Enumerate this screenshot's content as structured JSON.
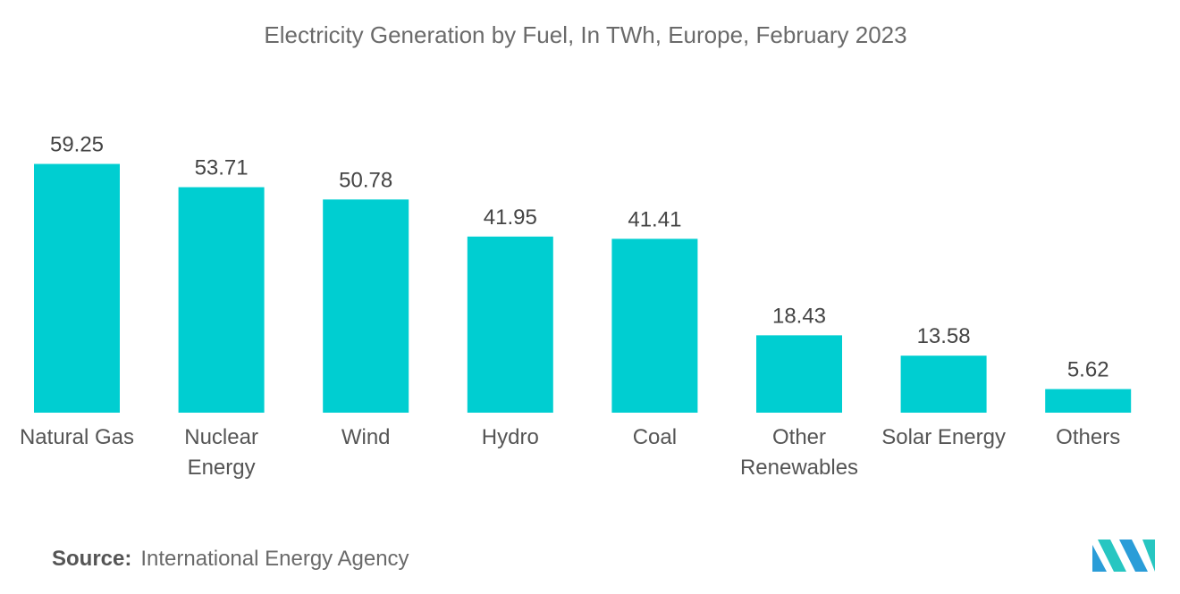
{
  "chart_data": {
    "type": "bar",
    "title": "Electricity Generation by Fuel, In TWh, Europe, February 2023",
    "categories": [
      [
        "Natural Gas"
      ],
      [
        "Nuclear",
        "Energy"
      ],
      [
        "Wind"
      ],
      [
        "Hydro"
      ],
      [
        "Coal"
      ],
      [
        "Other",
        "Renewables"
      ],
      [
        "Solar Energy"
      ],
      [
        "Others"
      ]
    ],
    "values": [
      59.25,
      53.71,
      50.78,
      41.95,
      41.41,
      18.43,
      13.58,
      5.62
    ],
    "value_labels": [
      "59.25",
      "53.71",
      "50.78",
      "41.95",
      "41.41",
      "18.43",
      "13.58",
      "5.62"
    ],
    "ylim": [
      0,
      65
    ],
    "grid": false,
    "legend": "none",
    "bar_color": "#00CED1"
  },
  "source": {
    "label": "Source:",
    "text": "International Energy Agency"
  },
  "logo": {
    "icon": "mordor-intelligence-logo",
    "colors": [
      "#2A9DD8",
      "#27C6C1"
    ]
  }
}
